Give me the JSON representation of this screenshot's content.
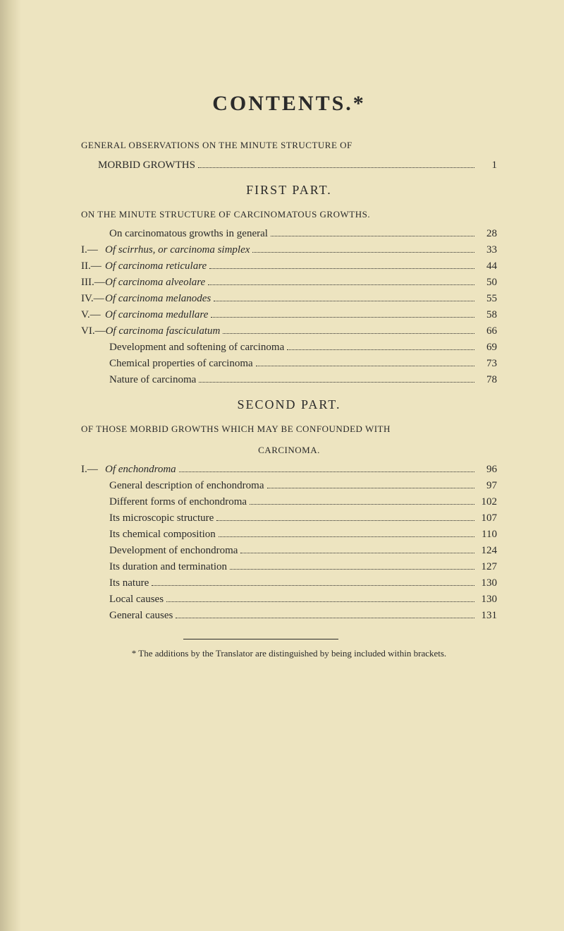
{
  "title": "CONTENTS.*",
  "general_header": "GENERAL OBSERVATIONS ON THE MINUTE STRUCTURE OF",
  "general_line": {
    "text": "MORBID GROWTHS",
    "page": "1"
  },
  "first_part": {
    "title": "FIRST PART.",
    "header": "ON THE MINUTE STRUCTURE OF CARCINOMATOUS GROWTHS.",
    "items": [
      {
        "roman": "",
        "text": "On carcinomatous growths in general",
        "italic": false,
        "page": "28",
        "indent": "indent-1"
      },
      {
        "roman": "I.—",
        "text": "Of scirrhus, or carcinoma simplex",
        "italic": true,
        "page": "33",
        "indent": ""
      },
      {
        "roman": "II.—",
        "text": "Of carcinoma reticulare",
        "italic": true,
        "page": "44",
        "indent": ""
      },
      {
        "roman": "III.—",
        "text": "Of carcinoma alveolare",
        "italic": true,
        "page": "50",
        "indent": ""
      },
      {
        "roman": "IV.—",
        "text": "Of carcinoma melanodes",
        "italic": true,
        "page": "55",
        "indent": ""
      },
      {
        "roman": "V.—",
        "text": "Of carcinoma medullare",
        "italic": true,
        "page": "58",
        "indent": ""
      },
      {
        "roman": "VI.—",
        "text": "Of carcinoma fasciculatum",
        "italic": true,
        "page": "66",
        "indent": ""
      },
      {
        "roman": "",
        "text": "Development and softening of carcinoma",
        "italic": false,
        "page": "69",
        "indent": "indent-1"
      },
      {
        "roman": "",
        "text": "Chemical properties of carcinoma",
        "italic": false,
        "page": "73",
        "indent": "indent-1"
      },
      {
        "roman": "",
        "text": "Nature of carcinoma",
        "italic": false,
        "page": "78",
        "indent": "indent-1"
      }
    ]
  },
  "second_part": {
    "title": "SECOND PART.",
    "header_line1": "OF THOSE MORBID GROWTHS WHICH MAY BE CONFOUNDED WITH",
    "header_line2": "CARCINOMA.",
    "items": [
      {
        "roman": "I.—",
        "text": "Of enchondroma",
        "italic": true,
        "page": "96",
        "indent": ""
      },
      {
        "roman": "",
        "text": "General description of enchondroma",
        "italic": false,
        "page": "97",
        "indent": "indent-1"
      },
      {
        "roman": "",
        "text": "Different forms of enchondroma",
        "italic": false,
        "page": "102",
        "indent": "indent-1"
      },
      {
        "roman": "",
        "text": "Its microscopic structure",
        "italic": false,
        "page": "107",
        "indent": "indent-1"
      },
      {
        "roman": "",
        "text": "Its chemical composition",
        "italic": false,
        "page": "110",
        "indent": "indent-1"
      },
      {
        "roman": "",
        "text": "Development of enchondroma",
        "italic": false,
        "page": "124",
        "indent": "indent-1"
      },
      {
        "roman": "",
        "text": "Its duration and termination",
        "italic": false,
        "page": "127",
        "indent": "indent-1"
      },
      {
        "roman": "",
        "text": "Its nature",
        "italic": false,
        "page": "130",
        "indent": "indent-1"
      },
      {
        "roman": "",
        "text": "Local causes",
        "italic": false,
        "page": "130",
        "indent": "indent-1"
      },
      {
        "roman": "",
        "text": "General causes",
        "italic": false,
        "page": "131",
        "indent": "indent-1"
      }
    ]
  },
  "footnote": "* The additions by the Translator are distinguished by being included within brackets."
}
